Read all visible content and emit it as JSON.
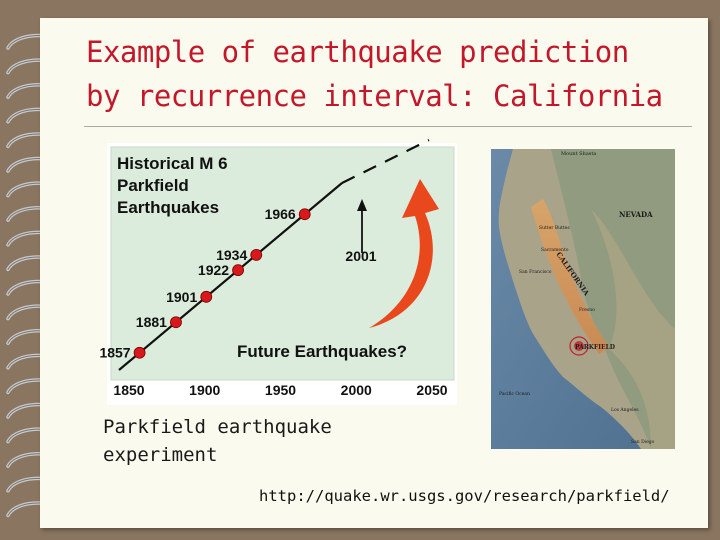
{
  "title": {
    "line1": "Example of earthquake prediction",
    "line2": "by recurrence interval: California"
  },
  "chart_data": {
    "type": "scatter",
    "title": "Historical M 6 Parkfield Earthquakes",
    "title_lines": [
      "Historical M 6",
      "Parkfield",
      "Earthquakes"
    ],
    "x_ticks": [
      "1850",
      "1900",
      "1950",
      "2000",
      "2050"
    ],
    "xlim": [
      1850,
      2050
    ],
    "points": [
      {
        "x": 1857,
        "label": "1857"
      },
      {
        "x": 1881,
        "label": "1881"
      },
      {
        "x": 1901,
        "label": "1901"
      },
      {
        "x": 1922,
        "label": "1922"
      },
      {
        "x": 1934,
        "label": "1934"
      },
      {
        "x": 1966,
        "label": "1966"
      }
    ],
    "prediction_label": "2001",
    "annotation": "Future Earthquakes?",
    "colors": {
      "background": "#dcecdc",
      "point": "#d7191c",
      "arrow": "#e8481c"
    }
  },
  "map": {
    "labels": {
      "nevada": "NEVADA",
      "california": "CALIFORNIA",
      "parkfield": "PARKFIELD",
      "pacific": "Pacific Ocean",
      "sf": "San Francisco",
      "la": "Los Angeles",
      "sd": "San Diego",
      "sac": "Sacramento",
      "fresno": "Fresno",
      "sutter": "Sutter Buttes",
      "shasta": "Mount Shasta"
    }
  },
  "caption": {
    "line1": "Parkfield earthquake",
    "line2": "experiment"
  },
  "source_url": "http://quake.wr.usgs.gov/research/parkfield/",
  "colors": {
    "title": "#c2182a",
    "slide": "#fbfaee",
    "frame": "#8a7560"
  }
}
